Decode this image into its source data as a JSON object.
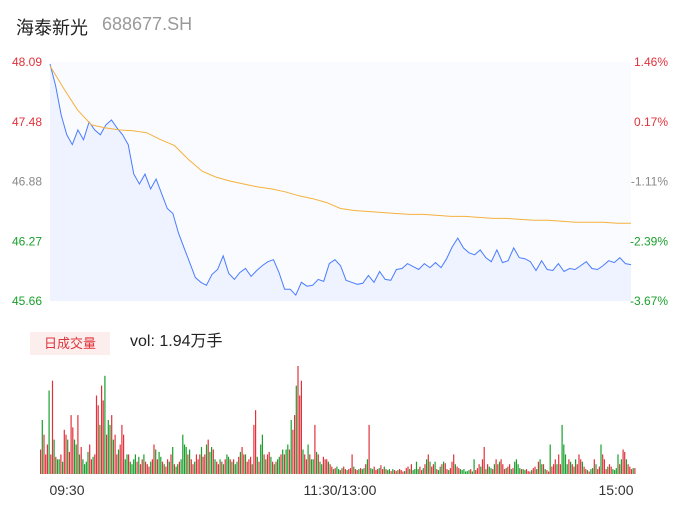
{
  "header": {
    "name": "海泰新光",
    "code": "688677.SH"
  },
  "volume_panel": {
    "badge": "日成交量",
    "vol_prefix": "vol:",
    "vol_value": "1.94万手"
  },
  "colors": {
    "up": "#e0323b",
    "down": "#1a9f2d",
    "price_line": "#4a7cff",
    "avg_line": "#f5b13c",
    "neutral": "#888888"
  },
  "chart_data": {
    "type": "line",
    "title": "",
    "xlabel": "",
    "ylabel": "",
    "x_ticks": [
      "09:30",
      "11:30/13:00",
      "15:00"
    ],
    "y_ticks_left": [
      "48.09",
      "47.48",
      "46.88",
      "46.27",
      "45.66"
    ],
    "y_ticks_right": [
      "1.46%",
      "0.17%",
      "-1.11%",
      "-2.39%",
      "-3.67%"
    ],
    "ylim": [
      45.66,
      48.09
    ],
    "prev_close": 47.4,
    "series": [
      {
        "values": [
          48.07,
          47.85,
          47.55,
          47.35,
          47.25,
          47.4,
          47.3,
          47.48,
          47.4,
          47.35,
          47.45,
          47.5,
          47.42,
          47.35,
          47.25,
          46.95,
          46.85,
          46.95,
          46.8,
          46.9,
          46.75,
          46.6,
          46.55,
          46.35,
          46.2,
          46.05,
          45.9,
          45.85,
          45.82,
          45.93,
          45.98,
          46.12,
          45.94,
          45.88,
          45.95,
          45.99,
          45.91,
          45.97,
          46.02,
          46.06,
          46.08,
          45.95,
          45.78,
          45.78,
          45.72,
          45.85,
          45.81,
          45.82,
          45.88,
          45.86,
          46.04,
          46.08,
          46.02,
          45.87,
          45.85,
          45.83,
          45.84,
          45.92,
          45.85,
          45.96,
          45.88,
          45.87,
          45.98,
          45.99,
          46.04,
          46.01,
          45.98,
          46.04,
          46.0,
          46.05,
          46.0,
          46.09,
          46.21,
          46.3,
          46.2,
          46.15,
          46.13,
          46.18,
          46.1,
          46.06,
          46.18,
          46.05,
          46.07,
          46.2,
          46.1,
          46.09,
          46.06,
          45.97,
          46.07,
          45.98,
          45.97,
          46.04,
          45.96,
          45.99,
          45.98,
          46.02,
          46.06,
          45.99,
          45.98,
          46.02,
          46.07,
          46.05,
          46.1,
          46.04,
          46.03
        ],
        "color": "#4a7cff"
      },
      {
        "values": [
          48.05,
          47.82,
          47.6,
          47.45,
          47.42,
          47.4,
          47.39,
          47.37,
          47.3,
          47.24,
          47.1,
          46.98,
          46.92,
          46.88,
          46.85,
          46.82,
          46.8,
          46.77,
          46.73,
          46.7,
          46.66,
          46.6,
          46.58,
          46.57,
          46.56,
          46.55,
          46.54,
          46.54,
          46.53,
          46.52,
          46.52,
          46.51,
          46.5,
          46.5,
          46.49,
          46.48,
          46.48,
          46.47,
          46.46,
          46.46,
          46.46,
          46.45,
          46.45
        ],
        "color": "#f5b13c"
      }
    ]
  },
  "volume_data": {
    "values": [
      50,
      110,
      80,
      40,
      60,
      170,
      40,
      190,
      70,
      35,
      30,
      30,
      40,
      25,
      90,
      80,
      70,
      45,
      120,
      95,
      70,
      60,
      120,
      40,
      55,
      30,
      20,
      25,
      45,
      60,
      30,
      35,
      40,
      160,
      140,
      100,
      180,
      150,
      200,
      80,
      110,
      100,
      120,
      70,
      80,
      40,
      50,
      60,
      100,
      80,
      30,
      40,
      40,
      25,
      20,
      30,
      40,
      25,
      35,
      20,
      30,
      40,
      25,
      20,
      15,
      25,
      30,
      60,
      50,
      30,
      45,
      35,
      25,
      20,
      15,
      30,
      25,
      40,
      55,
      20,
      15,
      20,
      25,
      30,
      80,
      60,
      55,
      40,
      50,
      30,
      20,
      25,
      40,
      30,
      40,
      55,
      35,
      40,
      60,
      70,
      45,
      55,
      50,
      30,
      25,
      20,
      30,
      25,
      20,
      30,
      40,
      35,
      30,
      25,
      30,
      20,
      25,
      35,
      45,
      55,
      40,
      40,
      25,
      30,
      35,
      20,
      100,
      130,
      35,
      25,
      60,
      80,
      40,
      30,
      40,
      45,
      35,
      25,
      20,
      25,
      30,
      35,
      40,
      50,
      40,
      50,
      60,
      50,
      110,
      90,
      120,
      180,
      220,
      160,
      190,
      50,
      40,
      30,
      60,
      40,
      30,
      30,
      100,
      45,
      40,
      25,
      20,
      35,
      30,
      30,
      25,
      20,
      15,
      10,
      12,
      15,
      10,
      8,
      12,
      15,
      10,
      8,
      10,
      12,
      40,
      15,
      10,
      8,
      10,
      12,
      10,
      12,
      20,
      30,
      100,
      12,
      10,
      15,
      8,
      10,
      12,
      18,
      10,
      15,
      10,
      8,
      10,
      6,
      10,
      8,
      6,
      8,
      10,
      8,
      5,
      6,
      12,
      15,
      10,
      20,
      8,
      10,
      25,
      10,
      15,
      8,
      12,
      20,
      30,
      40,
      25,
      15,
      20,
      25,
      10,
      8,
      15,
      20,
      25,
      22,
      10,
      8,
      12,
      25,
      40,
      20,
      15,
      12,
      10,
      8,
      10,
      5,
      6,
      8,
      10,
      5,
      30,
      8,
      12,
      20,
      15,
      30,
      55,
      10,
      20,
      15,
      12,
      10,
      20,
      30,
      20,
      25,
      30,
      20,
      10,
      12,
      15,
      20,
      10,
      12,
      25,
      30,
      20,
      12,
      10,
      10,
      8,
      10,
      6,
      5,
      8,
      12,
      15,
      10,
      25,
      30,
      20,
      20,
      10,
      8,
      5,
      60,
      15,
      20,
      30,
      20,
      40,
      20,
      100,
      60,
      40,
      20,
      30,
      25,
      20,
      15,
      30,
      20,
      40,
      30,
      25,
      15,
      10,
      8,
      5,
      10,
      12,
      30,
      20,
      10,
      15,
      60,
      40,
      30,
      10,
      15,
      20,
      15,
      10,
      8,
      12,
      40,
      20,
      30,
      50,
      45,
      30,
      20,
      15,
      10,
      12,
      12
    ],
    "ymax": 220
  }
}
